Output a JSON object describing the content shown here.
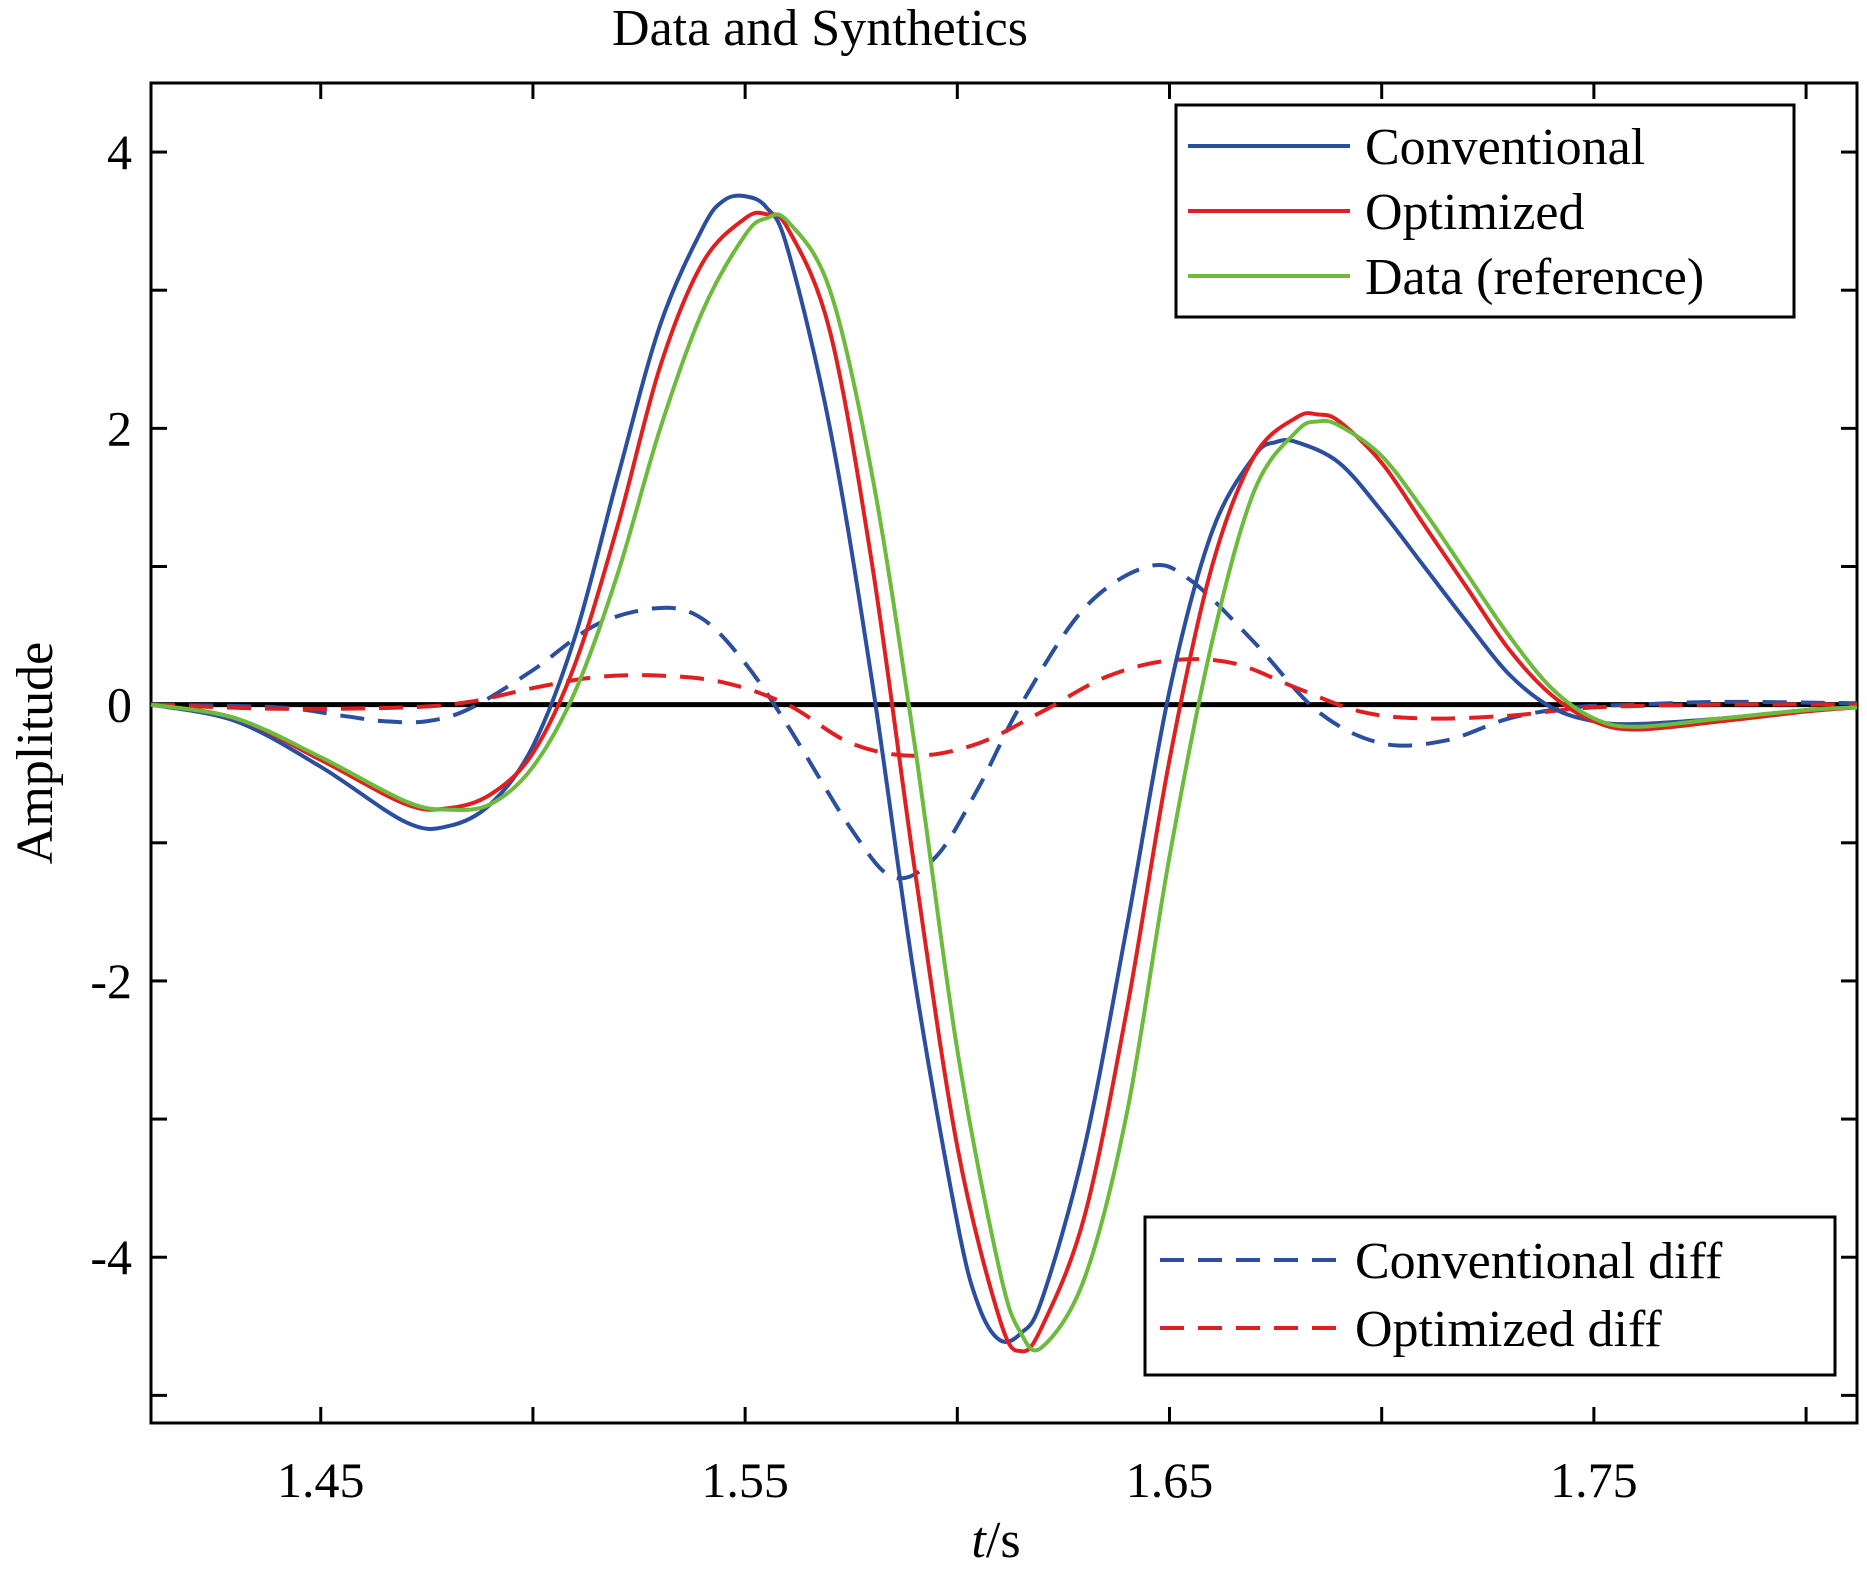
{
  "chart_data": {
    "type": "line",
    "title": "Data and Synthetics",
    "xlabel_italic": "t",
    "xlabel_suffix": "/s",
    "ylabel": "Amplitude",
    "xlim": [
      1.41,
      1.812
    ],
    "ylim": [
      -5.2,
      4.5
    ],
    "xticks": [
      1.45,
      1.55,
      1.65,
      1.75
    ],
    "xtick_labels": [
      "1.45",
      "1.55",
      "1.65",
      "1.75"
    ],
    "xticks_minor": [
      1.5,
      1.6,
      1.7,
      1.8
    ],
    "yticks": [
      4,
      2,
      0,
      -2,
      -4
    ],
    "ytick_labels": [
      "4",
      "2",
      "0",
      "-2",
      "-4"
    ],
    "yticks_minor": [
      3,
      1,
      -1,
      -3,
      -5
    ],
    "zero_line": true,
    "grid": false,
    "legends": [
      {
        "placement": "top-right",
        "entries": [
          "Conventional",
          "Optimized",
          "Data (reference)"
        ]
      },
      {
        "placement": "bottom-right",
        "entries": [
          "Conventional diff",
          "Optimized diff"
        ]
      }
    ],
    "series": [
      {
        "name": "Conventional",
        "color": "#2a4fa0",
        "style": "solid",
        "x": [
          1.41,
          1.43,
          1.45,
          1.47,
          1.48,
          1.49,
          1.5,
          1.51,
          1.52,
          1.53,
          1.54,
          1.545,
          1.55,
          1.555,
          1.56,
          1.57,
          1.58,
          1.59,
          1.6,
          1.605,
          1.61,
          1.615,
          1.62,
          1.63,
          1.64,
          1.65,
          1.66,
          1.67,
          1.675,
          1.68,
          1.69,
          1.7,
          1.71,
          1.72,
          1.73,
          1.74,
          1.75,
          1.76,
          1.78,
          1.8,
          1.812
        ],
        "y": [
          0.0,
          -0.12,
          -0.45,
          -0.85,
          -0.88,
          -0.72,
          -0.3,
          0.5,
          1.65,
          2.75,
          3.45,
          3.65,
          3.68,
          3.6,
          3.3,
          2.0,
          0.15,
          -2.0,
          -3.75,
          -4.35,
          -4.6,
          -4.55,
          -4.3,
          -3.2,
          -1.6,
          0.1,
          1.25,
          1.8,
          1.9,
          1.9,
          1.75,
          1.4,
          1.0,
          0.6,
          0.22,
          -0.02,
          -0.12,
          -0.14,
          -0.1,
          -0.04,
          -0.02
        ]
      },
      {
        "name": "Optimized",
        "color": "#e02020",
        "style": "solid",
        "x": [
          1.41,
          1.43,
          1.45,
          1.47,
          1.48,
          1.49,
          1.5,
          1.51,
          1.52,
          1.53,
          1.54,
          1.55,
          1.555,
          1.56,
          1.57,
          1.58,
          1.59,
          1.6,
          1.61,
          1.615,
          1.62,
          1.63,
          1.64,
          1.65,
          1.66,
          1.67,
          1.68,
          1.685,
          1.69,
          1.7,
          1.71,
          1.72,
          1.73,
          1.74,
          1.75,
          1.76,
          1.78,
          1.8,
          1.812
        ],
        "y": [
          0.0,
          -0.1,
          -0.4,
          -0.72,
          -0.75,
          -0.65,
          -0.35,
          0.3,
          1.3,
          2.45,
          3.2,
          3.52,
          3.55,
          3.45,
          2.7,
          1.0,
          -1.2,
          -3.2,
          -4.45,
          -4.68,
          -4.5,
          -3.7,
          -2.2,
          -0.4,
          1.0,
          1.8,
          2.08,
          2.1,
          2.05,
          1.75,
          1.3,
          0.85,
          0.4,
          0.07,
          -0.12,
          -0.18,
          -0.12,
          -0.05,
          -0.02
        ]
      },
      {
        "name": "Data (reference)",
        "color": "#6cbb3c",
        "style": "solid",
        "x": [
          1.41,
          1.43,
          1.45,
          1.47,
          1.48,
          1.49,
          1.5,
          1.51,
          1.52,
          1.53,
          1.54,
          1.55,
          1.555,
          1.56,
          1.57,
          1.58,
          1.59,
          1.6,
          1.61,
          1.615,
          1.62,
          1.63,
          1.64,
          1.65,
          1.66,
          1.67,
          1.68,
          1.685,
          1.69,
          1.7,
          1.71,
          1.72,
          1.73,
          1.74,
          1.75,
          1.76,
          1.78,
          1.8,
          1.812
        ],
        "y": [
          0.0,
          -0.1,
          -0.38,
          -0.7,
          -0.76,
          -0.72,
          -0.45,
          0.1,
          0.95,
          2.0,
          2.85,
          3.4,
          3.52,
          3.5,
          3.0,
          1.65,
          -0.3,
          -2.5,
          -4.1,
          -4.55,
          -4.65,
          -4.15,
          -2.95,
          -1.1,
          0.45,
          1.55,
          1.98,
          2.05,
          2.02,
          1.8,
          1.4,
          0.95,
          0.5,
          0.12,
          -0.1,
          -0.16,
          -0.1,
          -0.04,
          -0.02
        ]
      },
      {
        "name": "Conventional diff",
        "color": "#2a4fa0",
        "style": "dashed",
        "x": [
          1.41,
          1.44,
          1.455,
          1.465,
          1.475,
          1.485,
          1.5,
          1.515,
          1.53,
          1.54,
          1.55,
          1.56,
          1.575,
          1.585,
          1.595,
          1.605,
          1.615,
          1.63,
          1.645,
          1.655,
          1.67,
          1.685,
          1.7,
          1.715,
          1.73,
          1.745,
          1.76,
          1.78,
          1.812
        ],
        "y": [
          0.0,
          -0.02,
          -0.08,
          -0.12,
          -0.12,
          -0.03,
          0.25,
          0.58,
          0.7,
          0.62,
          0.3,
          -0.15,
          -0.9,
          -1.25,
          -1.1,
          -0.6,
          0.0,
          0.7,
          1.0,
          0.9,
          0.45,
          -0.05,
          -0.28,
          -0.26,
          -0.1,
          -0.02,
          0.0,
          0.02,
          0.01
        ]
      },
      {
        "name": "Optimized diff",
        "color": "#e02020",
        "style": "dashed",
        "x": [
          1.41,
          1.44,
          1.47,
          1.485,
          1.5,
          1.515,
          1.53,
          1.545,
          1.56,
          1.575,
          1.59,
          1.605,
          1.62,
          1.635,
          1.65,
          1.665,
          1.68,
          1.695,
          1.71,
          1.73,
          1.75,
          1.78,
          1.812
        ],
        "y": [
          0.0,
          -0.03,
          -0.02,
          0.02,
          0.12,
          0.2,
          0.21,
          0.16,
          0.0,
          -0.28,
          -0.37,
          -0.28,
          -0.05,
          0.2,
          0.32,
          0.3,
          0.12,
          -0.05,
          -0.1,
          -0.08,
          -0.02,
          0.0,
          0.0
        ]
      }
    ]
  }
}
